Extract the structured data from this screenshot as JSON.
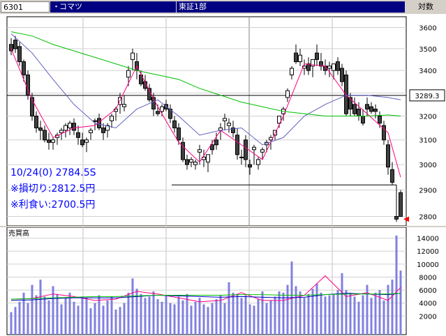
{
  "header": {
    "code": "6301",
    "name": "コマツ",
    "market": "東証1部",
    "scale_mode": "対数"
  },
  "price_panel": {
    "y_ticks": [
      "3600",
      "3500",
      "3400",
      "3300",
      "3200",
      "3100",
      "3000",
      "2900",
      "2800"
    ],
    "current_price_label": "3289.3",
    "support_line_value": 2920,
    "annotations": [
      "10/24(0) 2784.5S",
      "※損切り:2812.5円",
      "※利食い:2700.5円"
    ],
    "colors": {
      "up_candle": "#ffffff",
      "down_candle": "#404040",
      "ma_short": "#ff0080",
      "ma_mid": "#6060c0",
      "ma_long": "#00c000",
      "signal_arrow": "#ff0000"
    }
  },
  "volume_panel": {
    "title": "売買高",
    "y_ticks": [
      "14000",
      "12000",
      "10000",
      "8000",
      "6000",
      "4000",
      "2000"
    ]
  },
  "chart_data": [
    {
      "type": "candlestick",
      "title": "",
      "ylim": [
        2760,
        3660
      ],
      "y_scale": "log",
      "grid": true,
      "x": [
        0,
        1,
        2,
        3,
        4,
        5,
        6,
        7,
        8,
        9,
        10,
        11,
        12,
        13,
        14,
        15,
        16,
        17,
        18,
        19,
        20,
        21,
        22,
        23,
        24,
        25,
        26,
        27,
        28,
        29,
        30,
        31,
        32,
        33,
        34,
        35,
        36,
        37,
        38,
        39,
        40,
        41,
        42,
        43,
        44,
        45,
        46,
        47,
        48,
        49,
        50,
        51,
        52,
        53,
        54,
        55,
        56,
        57,
        58,
        59,
        60,
        61,
        62,
        63,
        64,
        65,
        66,
        67,
        68,
        69,
        70,
        71,
        72,
        73,
        74,
        75,
        76,
        77,
        78,
        79,
        80,
        81,
        82,
        83,
        84,
        85,
        86,
        87,
        88,
        89,
        90,
        91,
        92,
        93
      ],
      "open": [
        3520,
        3540,
        3510,
        3440,
        3380,
        3280,
        3200,
        3150,
        3140,
        3100,
        3090,
        3110,
        3130,
        3140,
        3150,
        3170,
        3130,
        3100,
        3090,
        3130,
        3180,
        3190,
        3150,
        3140,
        3180,
        3220,
        3250,
        3240,
        3370,
        3450,
        3440,
        3380,
        3350,
        3320,
        3280,
        3220,
        3220,
        3250,
        3230,
        3180,
        3150,
        3090,
        3020,
        3010,
        3000,
        3050,
        3020,
        3010,
        3080,
        3100,
        3140,
        3180,
        3160,
        3150,
        3120,
        3030,
        3100,
        3000,
        3060,
        3000,
        3050,
        3080,
        3100,
        3120,
        3170,
        3210,
        3280,
        3380,
        3480,
        3440,
        3410,
        3430,
        3420,
        3480,
        3440,
        3420,
        3410,
        3400,
        3440,
        3410,
        3380,
        3280,
        3250,
        3230,
        3200,
        3250,
        3240,
        3230,
        3200,
        3160,
        3080,
        2980,
        2800,
        2890
      ],
      "high": [
        3550,
        3560,
        3530,
        3450,
        3400,
        3300,
        3220,
        3180,
        3160,
        3130,
        3110,
        3130,
        3150,
        3170,
        3180,
        3190,
        3160,
        3130,
        3110,
        3150,
        3190,
        3210,
        3170,
        3170,
        3210,
        3240,
        3300,
        3290,
        3420,
        3500,
        3480,
        3400,
        3380,
        3340,
        3300,
        3250,
        3250,
        3270,
        3250,
        3200,
        3170,
        3110,
        3040,
        3030,
        3020,
        3080,
        3060,
        3040,
        3100,
        3130,
        3170,
        3210,
        3190,
        3180,
        3150,
        3060,
        3120,
        3020,
        3080,
        3030,
        3070,
        3100,
        3120,
        3140,
        3200,
        3240,
        3320,
        3420,
        3520,
        3500,
        3450,
        3460,
        3450,
        3520,
        3480,
        3450,
        3440,
        3430,
        3460,
        3430,
        3400,
        3300,
        3280,
        3260,
        3230,
        3280,
        3260,
        3250,
        3220,
        3180,
        3100,
        3010,
        2920,
        2900
      ],
      "low": [
        3470,
        3480,
        3420,
        3350,
        3270,
        3180,
        3130,
        3100,
        3090,
        3060,
        3060,
        3080,
        3100,
        3110,
        3120,
        3120,
        3080,
        3070,
        3050,
        3100,
        3140,
        3140,
        3100,
        3110,
        3150,
        3180,
        3210,
        3220,
        3330,
        3400,
        3360,
        3330,
        3310,
        3260,
        3200,
        3200,
        3200,
        3220,
        3170,
        3130,
        3080,
        3010,
        2980,
        2990,
        2980,
        3000,
        2990,
        2970,
        3040,
        3060,
        3100,
        3140,
        3130,
        3110,
        3020,
        3000,
        2990,
        2960,
        3000,
        2980,
        3020,
        3050,
        3060,
        3100,
        3150,
        3180,
        3260,
        3360,
        3430,
        3420,
        3380,
        3380,
        3370,
        3420,
        3400,
        3380,
        3370,
        3360,
        3380,
        3330,
        3200,
        3200,
        3200,
        3180,
        3160,
        3200,
        3210,
        3190,
        3150,
        3080,
        2960,
        2920,
        2780,
        2800
      ],
      "close": [
        3490,
        3500,
        3440,
        3380,
        3290,
        3200,
        3150,
        3140,
        3100,
        3090,
        3100,
        3120,
        3140,
        3160,
        3170,
        3140,
        3110,
        3080,
        3100,
        3140,
        3180,
        3150,
        3130,
        3160,
        3200,
        3230,
        3280,
        3250,
        3400,
        3480,
        3400,
        3340,
        3320,
        3270,
        3230,
        3210,
        3240,
        3230,
        3190,
        3150,
        3100,
        3020,
        3000,
        3020,
        3010,
        3060,
        3030,
        3040,
        3060,
        3080,
        3150,
        3190,
        3170,
        3130,
        3040,
        3030,
        3020,
        2990,
        3070,
        3020,
        3060,
        3090,
        3110,
        3140,
        3200,
        3230,
        3310,
        3410,
        3440,
        3470,
        3420,
        3400,
        3450,
        3450,
        3420,
        3400,
        3420,
        3430,
        3400,
        3350,
        3210,
        3230,
        3210,
        3200,
        3170,
        3230,
        3220,
        3220,
        3170,
        3100,
        2990,
        2930,
        2790,
        2800
      ]
    },
    {
      "type": "line",
      "title": "",
      "x": [
        0,
        5,
        10,
        15,
        20,
        25,
        30,
        35,
        40,
        45,
        50,
        55,
        60,
        65,
        70,
        75,
        80,
        85,
        90,
        93
      ],
      "series": [
        {
          "values": [
            3500,
            3270,
            3110,
            3150,
            3160,
            3230,
            3420,
            3240,
            3090,
            3010,
            3140,
            3080,
            3020,
            3200,
            3430,
            3420,
            3290,
            3210,
            3130,
            2950
          ]
        },
        {
          "values": [
            3570,
            3480,
            3360,
            3250,
            3170,
            3150,
            3230,
            3270,
            3200,
            3120,
            3140,
            3150,
            3080,
            3110,
            3200,
            3250,
            3290,
            3290,
            3280,
            3270
          ]
        },
        {
          "values": [
            3580,
            3560,
            3520,
            3490,
            3460,
            3430,
            3400,
            3380,
            3360,
            3320,
            3290,
            3260,
            3240,
            3220,
            3210,
            3200,
            3200,
            3200,
            3205,
            3200
          ]
        }
      ]
    },
    {
      "type": "bar",
      "title": "",
      "ylim": [
        0,
        15000
      ],
      "values": [
        2600,
        3400,
        4200,
        5600,
        4000,
        6800,
        5200,
        7600,
        5000,
        4400,
        6600,
        5400,
        3800,
        4800,
        5600,
        4200,
        3600,
        5000,
        4800,
        3200,
        4000,
        5200,
        3600,
        4400,
        5000,
        3000,
        3400,
        4000,
        5600,
        7800,
        6200,
        5400,
        4800,
        5000,
        5800,
        4600,
        4200,
        5200,
        4000,
        3800,
        5000,
        4400,
        5400,
        3600,
        4200,
        4800,
        3800,
        3400,
        4000,
        4600,
        5200,
        4000,
        7200,
        5600,
        5400,
        4800,
        5200,
        3800,
        3600,
        4600,
        5800,
        4000,
        4400,
        5000,
        5800,
        5600,
        6800,
        10400,
        6600,
        5800,
        4800,
        5400,
        6200,
        7000,
        5600,
        5000,
        5200,
        5400,
        6000,
        8600,
        6000,
        5600,
        5000,
        4200,
        5200,
        6800,
        4800,
        5600,
        6000,
        4400,
        6800,
        7600,
        14400,
        9000
      ]
    },
    {
      "type": "line",
      "title": "",
      "x": [
        0,
        5,
        10,
        15,
        20,
        25,
        30,
        35,
        40,
        45,
        50,
        55,
        60,
        65,
        70,
        75,
        80,
        85,
        90,
        93
      ],
      "series": [
        {
          "values": [
            4600,
            4700,
            5400,
            5000,
            4400,
            4600,
            5800,
            5400,
            4800,
            4200,
            4400,
            5600,
            4400,
            4400,
            5200,
            8200,
            5000,
            5600,
            4400,
            6400
          ]
        },
        {
          "values": [
            4400,
            4500,
            4700,
            4800,
            4800,
            4800,
            5000,
            5200,
            5100,
            5000,
            4900,
            5000,
            4900,
            4800,
            4900,
            5300,
            5500,
            5400,
            5300,
            5500
          ]
        },
        {
          "values": [
            4600,
            4700,
            4800,
            4900,
            5000,
            5000,
            5100,
            5200,
            5200,
            5200,
            5200,
            5300,
            5300,
            5200,
            5200,
            5300,
            5400,
            5400,
            5400,
            5500
          ]
        }
      ]
    }
  ]
}
